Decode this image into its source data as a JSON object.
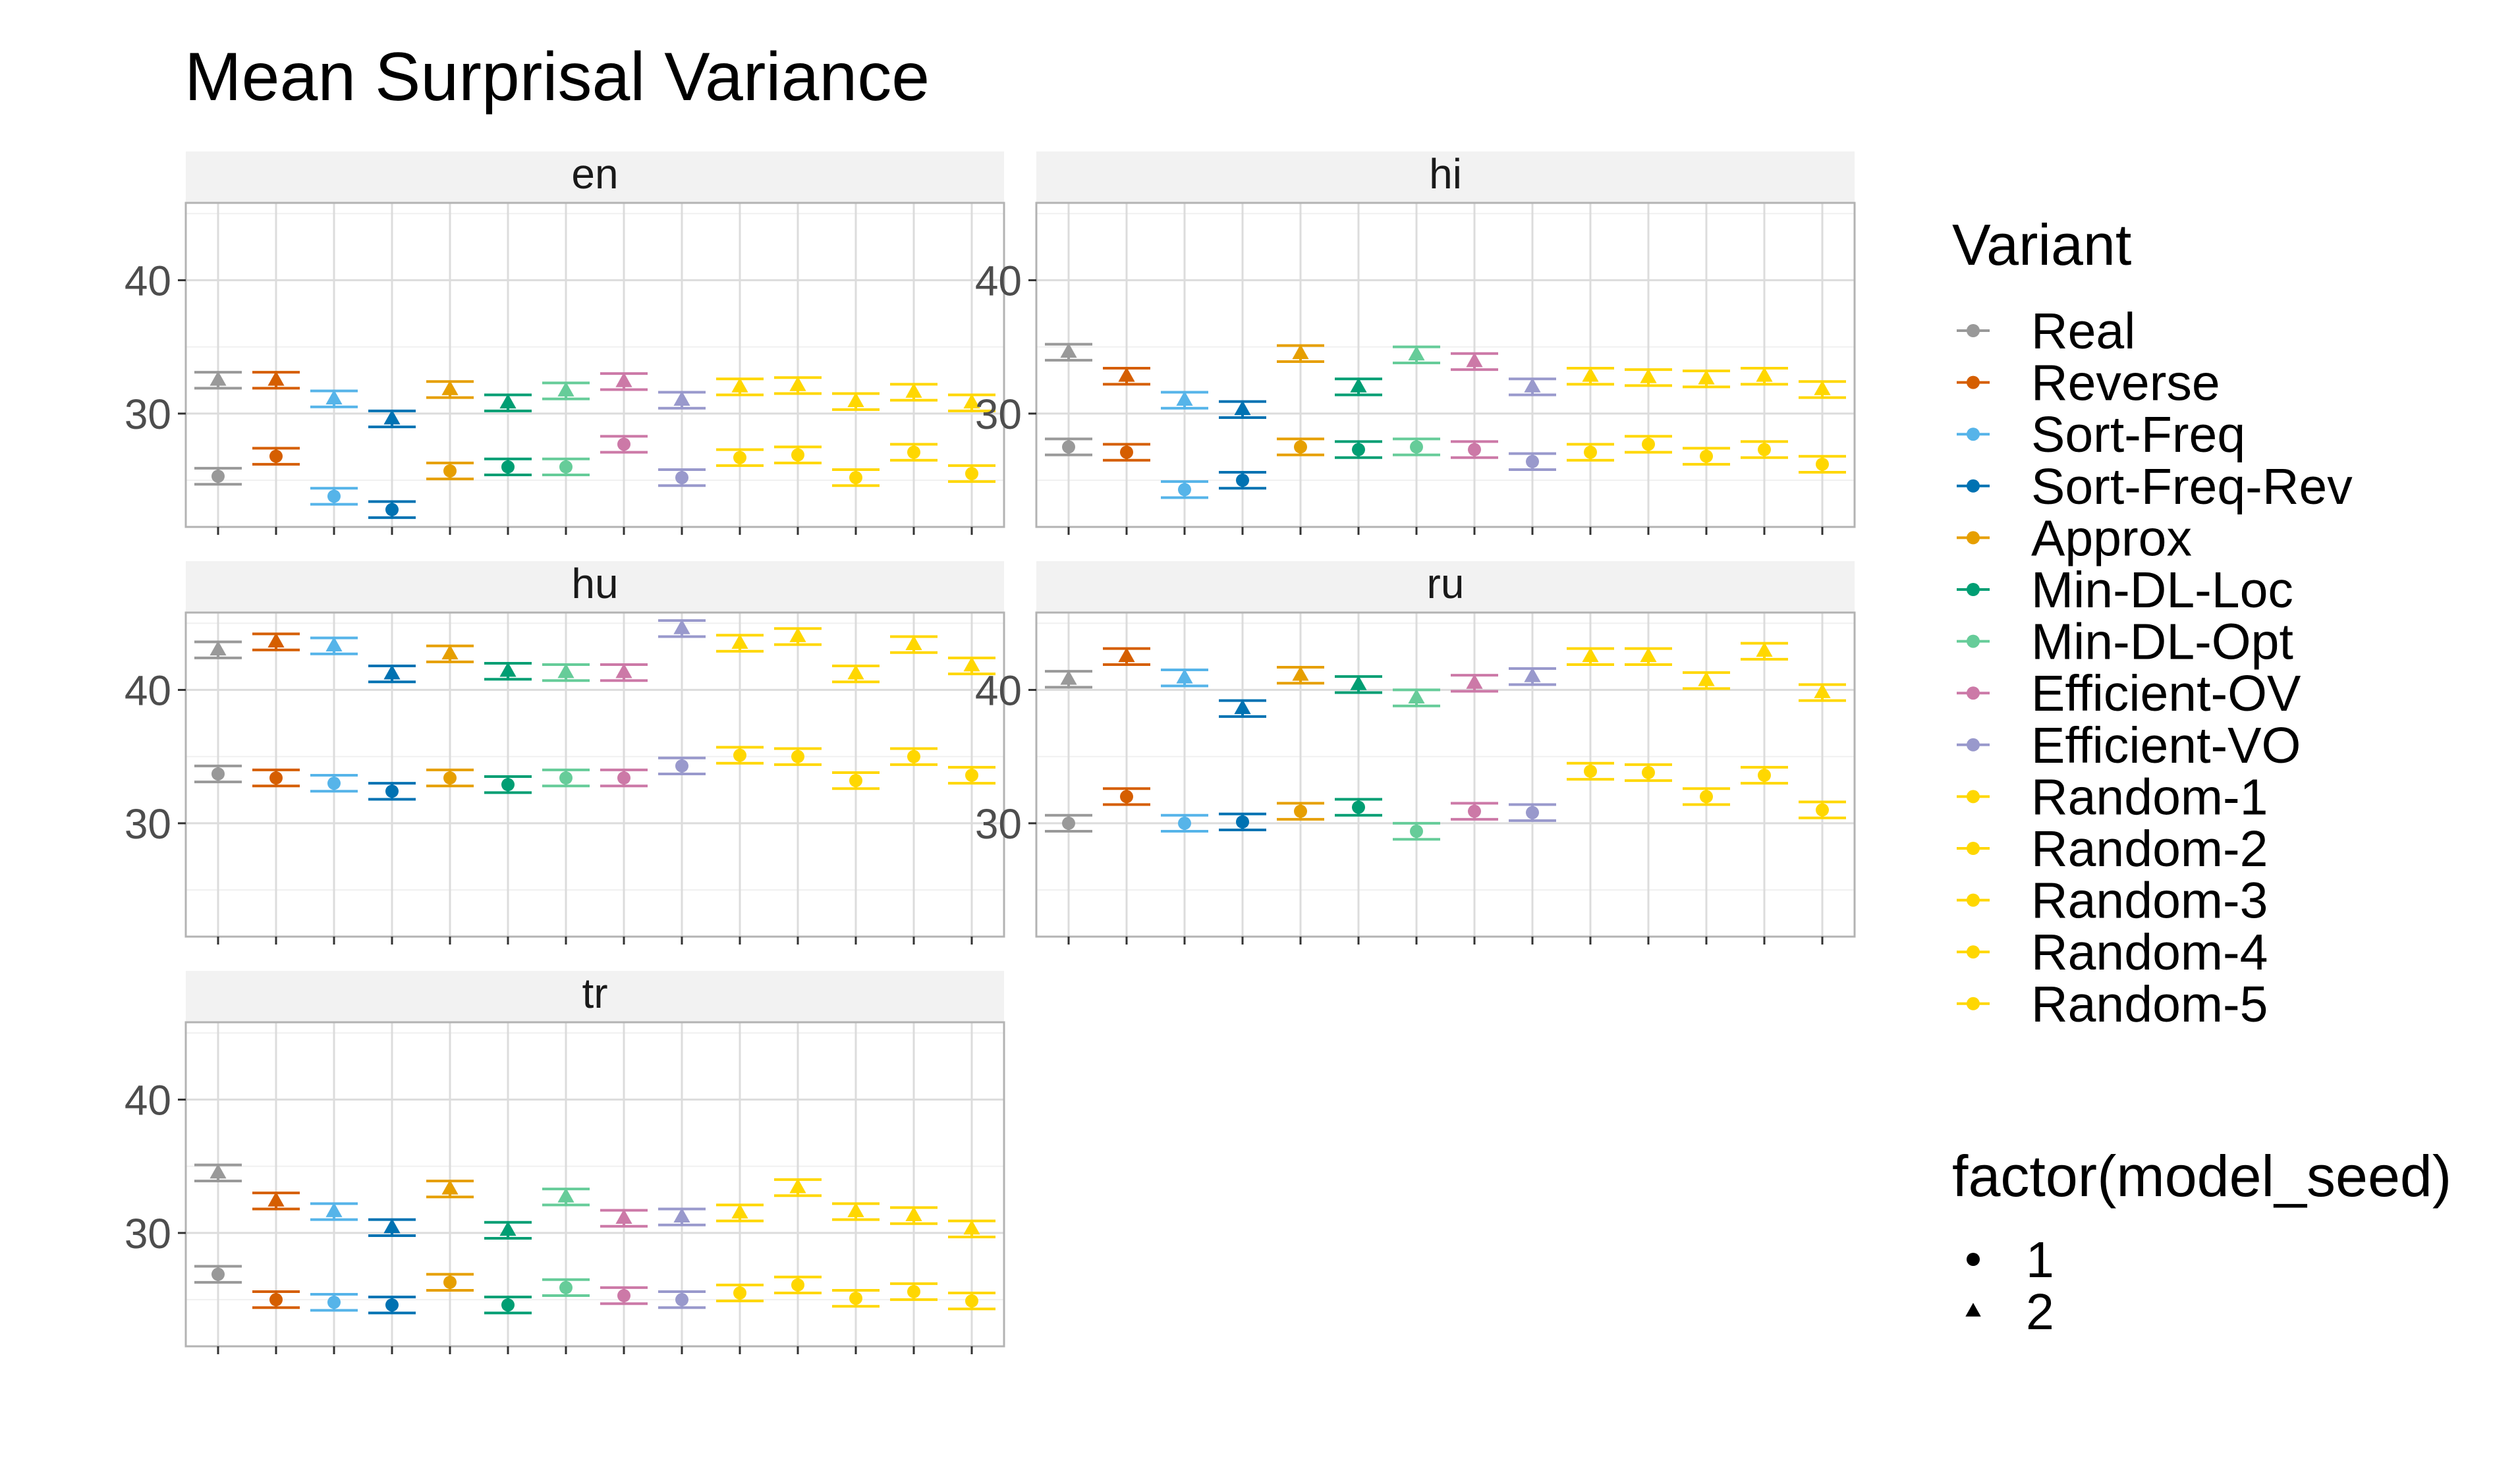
{
  "chart_data": {
    "type": "scatter",
    "title": "Mean Surprisal Variance",
    "xlabel": "",
    "ylabel": "",
    "ylim": [
      21.5,
      45.8
    ],
    "y_ticks": [
      "30",
      "40"
    ],
    "facets": [
      "en",
      "hi",
      "hu",
      "ru",
      "tr"
    ],
    "grid": true,
    "legend_placement": "right",
    "variants": [
      {
        "name": "Real",
        "color": "#999999"
      },
      {
        "name": "Reverse",
        "color": "#D55E00"
      },
      {
        "name": "Sort-Freq",
        "color": "#56B4E9"
      },
      {
        "name": "Sort-Freq-Rev",
        "color": "#0072B2"
      },
      {
        "name": "Approx",
        "color": "#E69F00"
      },
      {
        "name": "Min-DL-Loc",
        "color": "#009E73"
      },
      {
        "name": "Min-DL-Opt",
        "color": "#66CC99"
      },
      {
        "name": "Efficient-OV",
        "color": "#CC79A7"
      },
      {
        "name": "Efficient-VO",
        "color": "#9999CC"
      },
      {
        "name": "Random-1",
        "color": "#FFD700"
      },
      {
        "name": "Random-2",
        "color": "#FFD700"
      },
      {
        "name": "Random-3",
        "color": "#FFD700"
      },
      {
        "name": "Random-4",
        "color": "#FFD700"
      },
      {
        "name": "Random-5",
        "color": "#FFD700"
      }
    ],
    "shape_legend": {
      "title": "factor(model_seed)",
      "levels": [
        "1",
        "2"
      ]
    },
    "panels": [
      {
        "facet": "en",
        "series": [
          {
            "seed": "1",
            "values": [
              25.3,
              26.8,
              23.8,
              22.8,
              25.7,
              26.0,
              26.0,
              27.7,
              25.2,
              26.7,
              26.9,
              25.2,
              27.1,
              25.5
            ]
          },
          {
            "seed": "2",
            "values": [
              32.5,
              32.5,
              31.1,
              29.6,
              31.8,
              30.8,
              31.7,
              32.4,
              31.0,
              32.0,
              32.1,
              30.9,
              31.6,
              30.8
            ]
          }
        ]
      },
      {
        "facet": "hi",
        "series": [
          {
            "seed": "1",
            "values": [
              27.5,
              27.1,
              24.3,
              25.0,
              27.5,
              27.3,
              27.5,
              27.3,
              26.4,
              27.1,
              27.7,
              26.8,
              27.3,
              26.2
            ]
          },
          {
            "seed": "2",
            "values": [
              34.6,
              32.8,
              31.0,
              30.3,
              34.5,
              32.0,
              34.4,
              33.9,
              32.0,
              32.8,
              32.7,
              32.6,
              32.8,
              31.8
            ]
          }
        ]
      },
      {
        "facet": "hu",
        "series": [
          {
            "seed": "1",
            "values": [
              33.7,
              33.4,
              33.0,
              32.4,
              33.4,
              32.9,
              33.4,
              33.4,
              34.3,
              35.1,
              35.0,
              33.2,
              35.0,
              33.6
            ]
          },
          {
            "seed": "2",
            "values": [
              43.0,
              43.6,
              43.3,
              41.2,
              42.7,
              41.4,
              41.3,
              41.3,
              44.6,
              43.5,
              44.0,
              41.2,
              43.4,
              41.8
            ]
          }
        ]
      },
      {
        "facet": "ru",
        "series": [
          {
            "seed": "1",
            "values": [
              30.0,
              32.0,
              30.0,
              30.1,
              30.9,
              31.2,
              29.4,
              30.9,
              30.8,
              33.9,
              33.8,
              32.0,
              33.6,
              31.0
            ]
          },
          {
            "seed": "2",
            "values": [
              40.8,
              42.5,
              40.9,
              38.6,
              41.1,
              40.4,
              39.4,
              40.5,
              41.0,
              42.5,
              42.5,
              40.7,
              42.9,
              39.8
            ]
          }
        ]
      },
      {
        "facet": "tr",
        "series": [
          {
            "seed": "1",
            "values": [
              26.9,
              25.0,
              24.8,
              24.6,
              26.3,
              24.6,
              25.9,
              25.3,
              25.0,
              25.5,
              26.1,
              25.1,
              25.6,
              24.9
            ]
          },
          {
            "seed": "2",
            "values": [
              34.5,
              32.4,
              31.6,
              30.4,
              33.3,
              30.2,
              32.7,
              31.1,
              31.2,
              31.5,
              33.4,
              31.6,
              31.3,
              30.3
            ]
          }
        ]
      }
    ]
  }
}
